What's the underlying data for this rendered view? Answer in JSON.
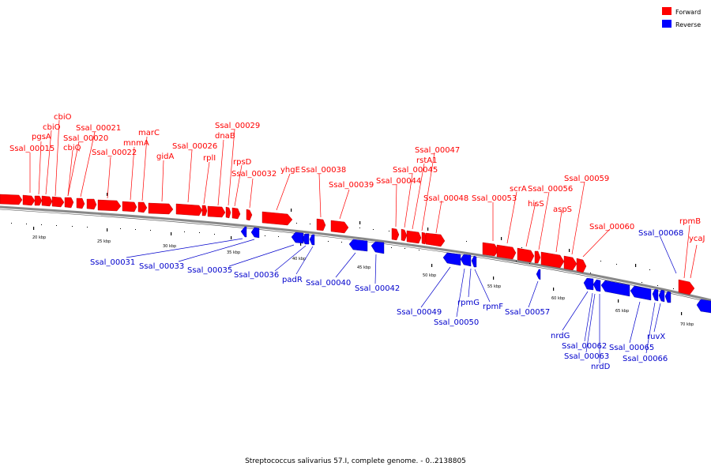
{
  "colors": {
    "forward": "#ff0000",
    "reverse": "#0000ff",
    "backbone": "#888888",
    "forward_label": "#ff0000",
    "reverse_label": "#0000cc"
  },
  "legend": {
    "forward": "Forward",
    "reverse": "Reverse"
  },
  "caption": "Streptococcus salivarius 57.I, complete genome. - 0..2138805",
  "kbp_ticks": [
    "20 kbp",
    "25 kbp",
    "30 kbp",
    "35 kbp",
    "40 kbp",
    "45 kbp",
    "50 kbp",
    "55 kbp",
    "60 kbp",
    "65 kbp",
    "70 kbp"
  ],
  "forward_labels": [
    "Ssal_00015",
    "pgsA",
    "cbiO",
    "cbiO",
    "Ssal_00020",
    "cbiQ",
    "Ssal_00021",
    "Ssal_00022",
    "mnmA",
    "marC",
    "gidA",
    "Ssal_00026",
    "rplI",
    "dnaB",
    "Ssal_00029",
    "rpsD",
    "Ssal_00032",
    "yhgE",
    "Ssal_00038",
    "Ssal_00039",
    "Ssal_00044",
    "Ssal_00045",
    "rstA1",
    "Ssal_00047",
    "Ssal_00048",
    "Ssal_00053",
    "scrA",
    "hisS",
    "Ssal_00056",
    "aspS",
    "Ssal_00059",
    "Ssal_00060",
    "rpmB",
    "ycaJ"
  ],
  "reverse_labels": [
    "Ssal_00031",
    "Ssal_00033",
    "Ssal_00035",
    "Ssal_00036",
    "padR",
    "Ssal_00040",
    "Ssal_00042",
    "Ssal_00049",
    "Ssal_00050",
    "rpmG",
    "rpmF",
    "Ssal_00057",
    "nrdG",
    "Ssal_00062",
    "Ssal_00063",
    "nrdD",
    "Ssal_00065",
    "Ssal_00066",
    "ruvX",
    "Ssal_00068"
  ]
}
